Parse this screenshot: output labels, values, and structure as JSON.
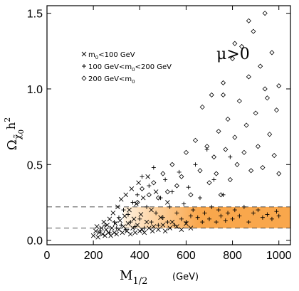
{
  "chart_data": {
    "type": "scatter",
    "title": "",
    "xlim": [
      0,
      1050
    ],
    "ylim": [
      -0.03,
      1.55
    ],
    "xticks": [
      0,
      200,
      400,
      600,
      800,
      1000
    ],
    "xtick_labels": [
      "0",
      "200",
      "400",
      "600",
      "800",
      "1000"
    ],
    "yticks": [
      0.0,
      0.5,
      1.0,
      1.5
    ],
    "ytick_labels": [
      "0.0",
      "0.5",
      "1.0",
      "1.5"
    ],
    "xlabel": {
      "main": "M",
      "sub": "1/2",
      "unit": "(GeV)"
    },
    "ylabel": {
      "main": "Ω",
      "sub": "χ̃",
      "sub2": "0",
      "sup": "h",
      "sup2": "2"
    },
    "annotation": "μ>0",
    "band": {
      "ymin": 0.08,
      "ymax": 0.22,
      "xmin": 330,
      "xmax": 1050,
      "color_start": "#fff2e0",
      "color_end": "#f9a74c"
    },
    "dashed_lines": [
      0.08,
      0.22
    ],
    "grid": false,
    "legend_position": "top-left",
    "legend": [
      {
        "symbol": "×",
        "label": "m<sub>0</sub><100  GeV",
        "text": "m0<100 GeV",
        "parts": [
          "m",
          "0",
          "<100  GeV"
        ]
      },
      {
        "symbol": "+",
        "label": "100 GeV<m0<200 GeV",
        "parts": [
          "100  GeV<m",
          "0",
          "<200  GeV"
        ]
      },
      {
        "symbol": "◇",
        "label": "200 GeV<m0",
        "parts": [
          "200  GeV<m",
          "0",
          ""
        ]
      }
    ],
    "series": [
      {
        "marker": "x",
        "points": [
          [
            200,
            0.03
          ],
          [
            210,
            0.06
          ],
          [
            215,
            0.09
          ],
          [
            220,
            0.02
          ],
          [
            225,
            0.05
          ],
          [
            235,
            0.08
          ],
          [
            240,
            0.04
          ],
          [
            245,
            0.12
          ],
          [
            250,
            0.03
          ],
          [
            255,
            0.07
          ],
          [
            260,
            0.1
          ],
          [
            265,
            0.05
          ],
          [
            270,
            0.14
          ],
          [
            275,
            0.03
          ],
          [
            280,
            0.08
          ],
          [
            285,
            0.18
          ],
          [
            290,
            0.05
          ],
          [
            295,
            0.11
          ],
          [
            300,
            0.04
          ],
          [
            305,
            0.22
          ],
          [
            310,
            0.07
          ],
          [
            315,
            0.13
          ],
          [
            320,
            0.27
          ],
          [
            325,
            0.05
          ],
          [
            330,
            0.09
          ],
          [
            335,
            0.16
          ],
          [
            340,
            0.3
          ],
          [
            345,
            0.06
          ],
          [
            350,
            0.11
          ],
          [
            355,
            0.2
          ],
          [
            360,
            0.04
          ],
          [
            365,
            0.34
          ],
          [
            370,
            0.08
          ],
          [
            375,
            0.14
          ],
          [
            380,
            0.05
          ],
          [
            385,
            0.24
          ],
          [
            390,
            0.1
          ],
          [
            395,
            0.38
          ],
          [
            400,
            0.06
          ],
          [
            405,
            0.17
          ],
          [
            410,
            0.07
          ],
          [
            415,
            0.28
          ],
          [
            420,
            0.05
          ],
          [
            430,
            0.12
          ],
          [
            435,
            0.42
          ],
          [
            440,
            0.08
          ],
          [
            450,
            0.2
          ],
          [
            455,
            0.06
          ],
          [
            460,
            0.09
          ],
          [
            470,
            0.32
          ],
          [
            480,
            0.07
          ],
          [
            490,
            0.15
          ],
          [
            500,
            0.1
          ],
          [
            510,
            0.06
          ],
          [
            520,
            0.25
          ],
          [
            530,
            0.08
          ],
          [
            540,
            0.12
          ],
          [
            560,
            0.09
          ],
          [
            580,
            0.07
          ],
          [
            600,
            0.11
          ],
          [
            620,
            0.08
          ]
        ]
      },
      {
        "marker": "plus",
        "points": [
          [
            230,
            0.06
          ],
          [
            250,
            0.1
          ],
          [
            270,
            0.05
          ],
          [
            290,
            0.12
          ],
          [
            300,
            0.08
          ],
          [
            310,
            0.15
          ],
          [
            320,
            0.1
          ],
          [
            330,
            0.2
          ],
          [
            340,
            0.07
          ],
          [
            350,
            0.17
          ],
          [
            360,
            0.12
          ],
          [
            370,
            0.25
          ],
          [
            380,
            0.09
          ],
          [
            390,
            0.3
          ],
          [
            400,
            0.14
          ],
          [
            410,
            0.42
          ],
          [
            420,
            0.08
          ],
          [
            430,
            0.22
          ],
          [
            440,
            0.36
          ],
          [
            450,
            0.12
          ],
          [
            460,
            0.48
          ],
          [
            470,
            0.18
          ],
          [
            480,
            0.1
          ],
          [
            490,
            0.28
          ],
          [
            500,
            0.15
          ],
          [
            510,
            0.4
          ],
          [
            520,
            0.12
          ],
          [
            530,
            0.22
          ],
          [
            540,
            0.32
          ],
          [
            550,
            0.1
          ],
          [
            560,
            0.18
          ],
          [
            570,
            0.45
          ],
          [
            580,
            0.14
          ],
          [
            590,
            0.24
          ],
          [
            600,
            0.12
          ],
          [
            610,
            0.35
          ],
          [
            620,
            0.16
          ],
          [
            630,
            0.2
          ],
          [
            640,
            0.5
          ],
          [
            650,
            0.15
          ],
          [
            660,
            0.28
          ],
          [
            670,
            0.12
          ],
          [
            680,
            0.18
          ],
          [
            690,
            0.6
          ],
          [
            700,
            0.14
          ],
          [
            710,
            0.22
          ],
          [
            720,
            0.4
          ],
          [
            730,
            0.12
          ],
          [
            740,
            0.2
          ],
          [
            750,
            0.16
          ],
          [
            760,
            0.3
          ],
          [
            770,
            0.13
          ],
          [
            780,
            0.18
          ],
          [
            790,
            0.55
          ],
          [
            800,
            0.14
          ],
          [
            810,
            0.2
          ],
          [
            830,
            0.16
          ],
          [
            850,
            0.22
          ],
          [
            870,
            0.12
          ],
          [
            890,
            0.18
          ],
          [
            910,
            0.2
          ],
          [
            930,
            0.15
          ],
          [
            950,
            0.17
          ],
          [
            970,
            0.14
          ],
          [
            990,
            0.19
          ],
          [
            1000,
            0.16
          ]
        ]
      },
      {
        "marker": "diamond",
        "points": [
          [
            390,
            0.25
          ],
          [
            410,
            0.34
          ],
          [
            440,
            0.3
          ],
          [
            460,
            0.38
          ],
          [
            480,
            0.28
          ],
          [
            500,
            0.44
          ],
          [
            520,
            0.32
          ],
          [
            540,
            0.5
          ],
          [
            560,
            0.36
          ],
          [
            580,
            0.42
          ],
          [
            600,
            0.58
          ],
          [
            620,
            0.3
          ],
          [
            640,
            0.66
          ],
          [
            660,
            0.46
          ],
          [
            670,
            0.88
          ],
          [
            690,
            0.62
          ],
          [
            700,
            0.38
          ],
          [
            710,
            0.96
          ],
          [
            720,
            0.55
          ],
          [
            730,
            0.44
          ],
          [
            740,
            0.72
          ],
          [
            750,
            0.3
          ],
          [
            760,
            1.04
          ],
          [
            770,
            0.6
          ],
          [
            780,
            0.8
          ],
          [
            790,
            0.4
          ],
          [
            800,
            1.2
          ],
          [
            810,
            0.68
          ],
          [
            820,
            0.5
          ],
          [
            830,
            0.92
          ],
          [
            840,
            1.28
          ],
          [
            850,
            0.58
          ],
          [
            860,
            0.76
          ],
          [
            870,
            1.08
          ],
          [
            880,
            0.46
          ],
          [
            890,
            1.38
          ],
          [
            900,
            0.84
          ],
          [
            910,
            0.62
          ],
          [
            920,
            1.15
          ],
          [
            930,
            0.48
          ],
          [
            940,
            1.5
          ],
          [
            950,
            0.94
          ],
          [
            960,
            0.7
          ],
          [
            970,
            1.24
          ],
          [
            980,
            0.56
          ],
          [
            990,
            0.86
          ],
          [
            1000,
            1.02
          ],
          [
            1000,
            0.44
          ],
          [
            870,
            1.45
          ],
          [
            810,
            1.3
          ],
          [
            760,
            0.96
          ],
          [
            940,
            1.0
          ]
        ]
      }
    ]
  }
}
